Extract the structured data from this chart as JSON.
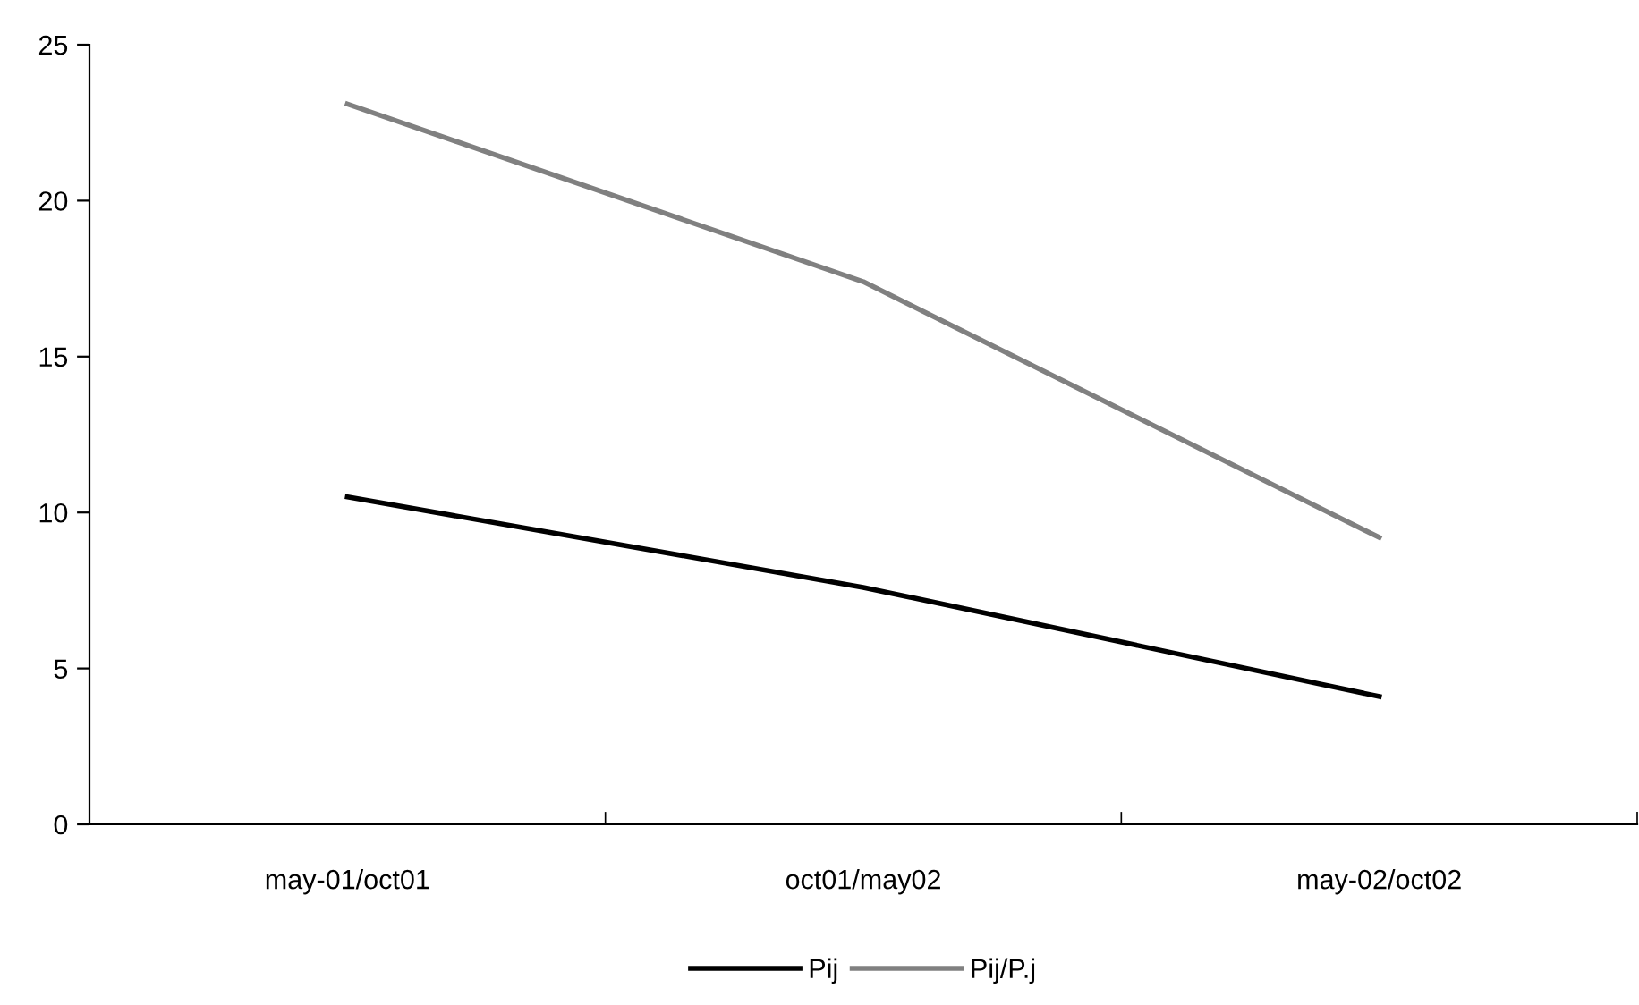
{
  "chart_data": {
    "type": "line",
    "categories": [
      "may-01/oct01",
      "oct01/may02",
      "may-02/oct02"
    ],
    "series": [
      {
        "name": "Pij",
        "color": "#000000",
        "values": [
          10.5,
          7.6,
          4.1
        ]
      },
      {
        "name": "Pij/P.j",
        "color": "#808080",
        "values": [
          23.1,
          17.4,
          9.2
        ]
      }
    ],
    "ylim": [
      0,
      25
    ],
    "yticks": [
      0,
      5,
      10,
      15,
      20,
      25
    ],
    "grid": false,
    "legend": "bottom",
    "marker": "none",
    "line_style": "solid"
  }
}
